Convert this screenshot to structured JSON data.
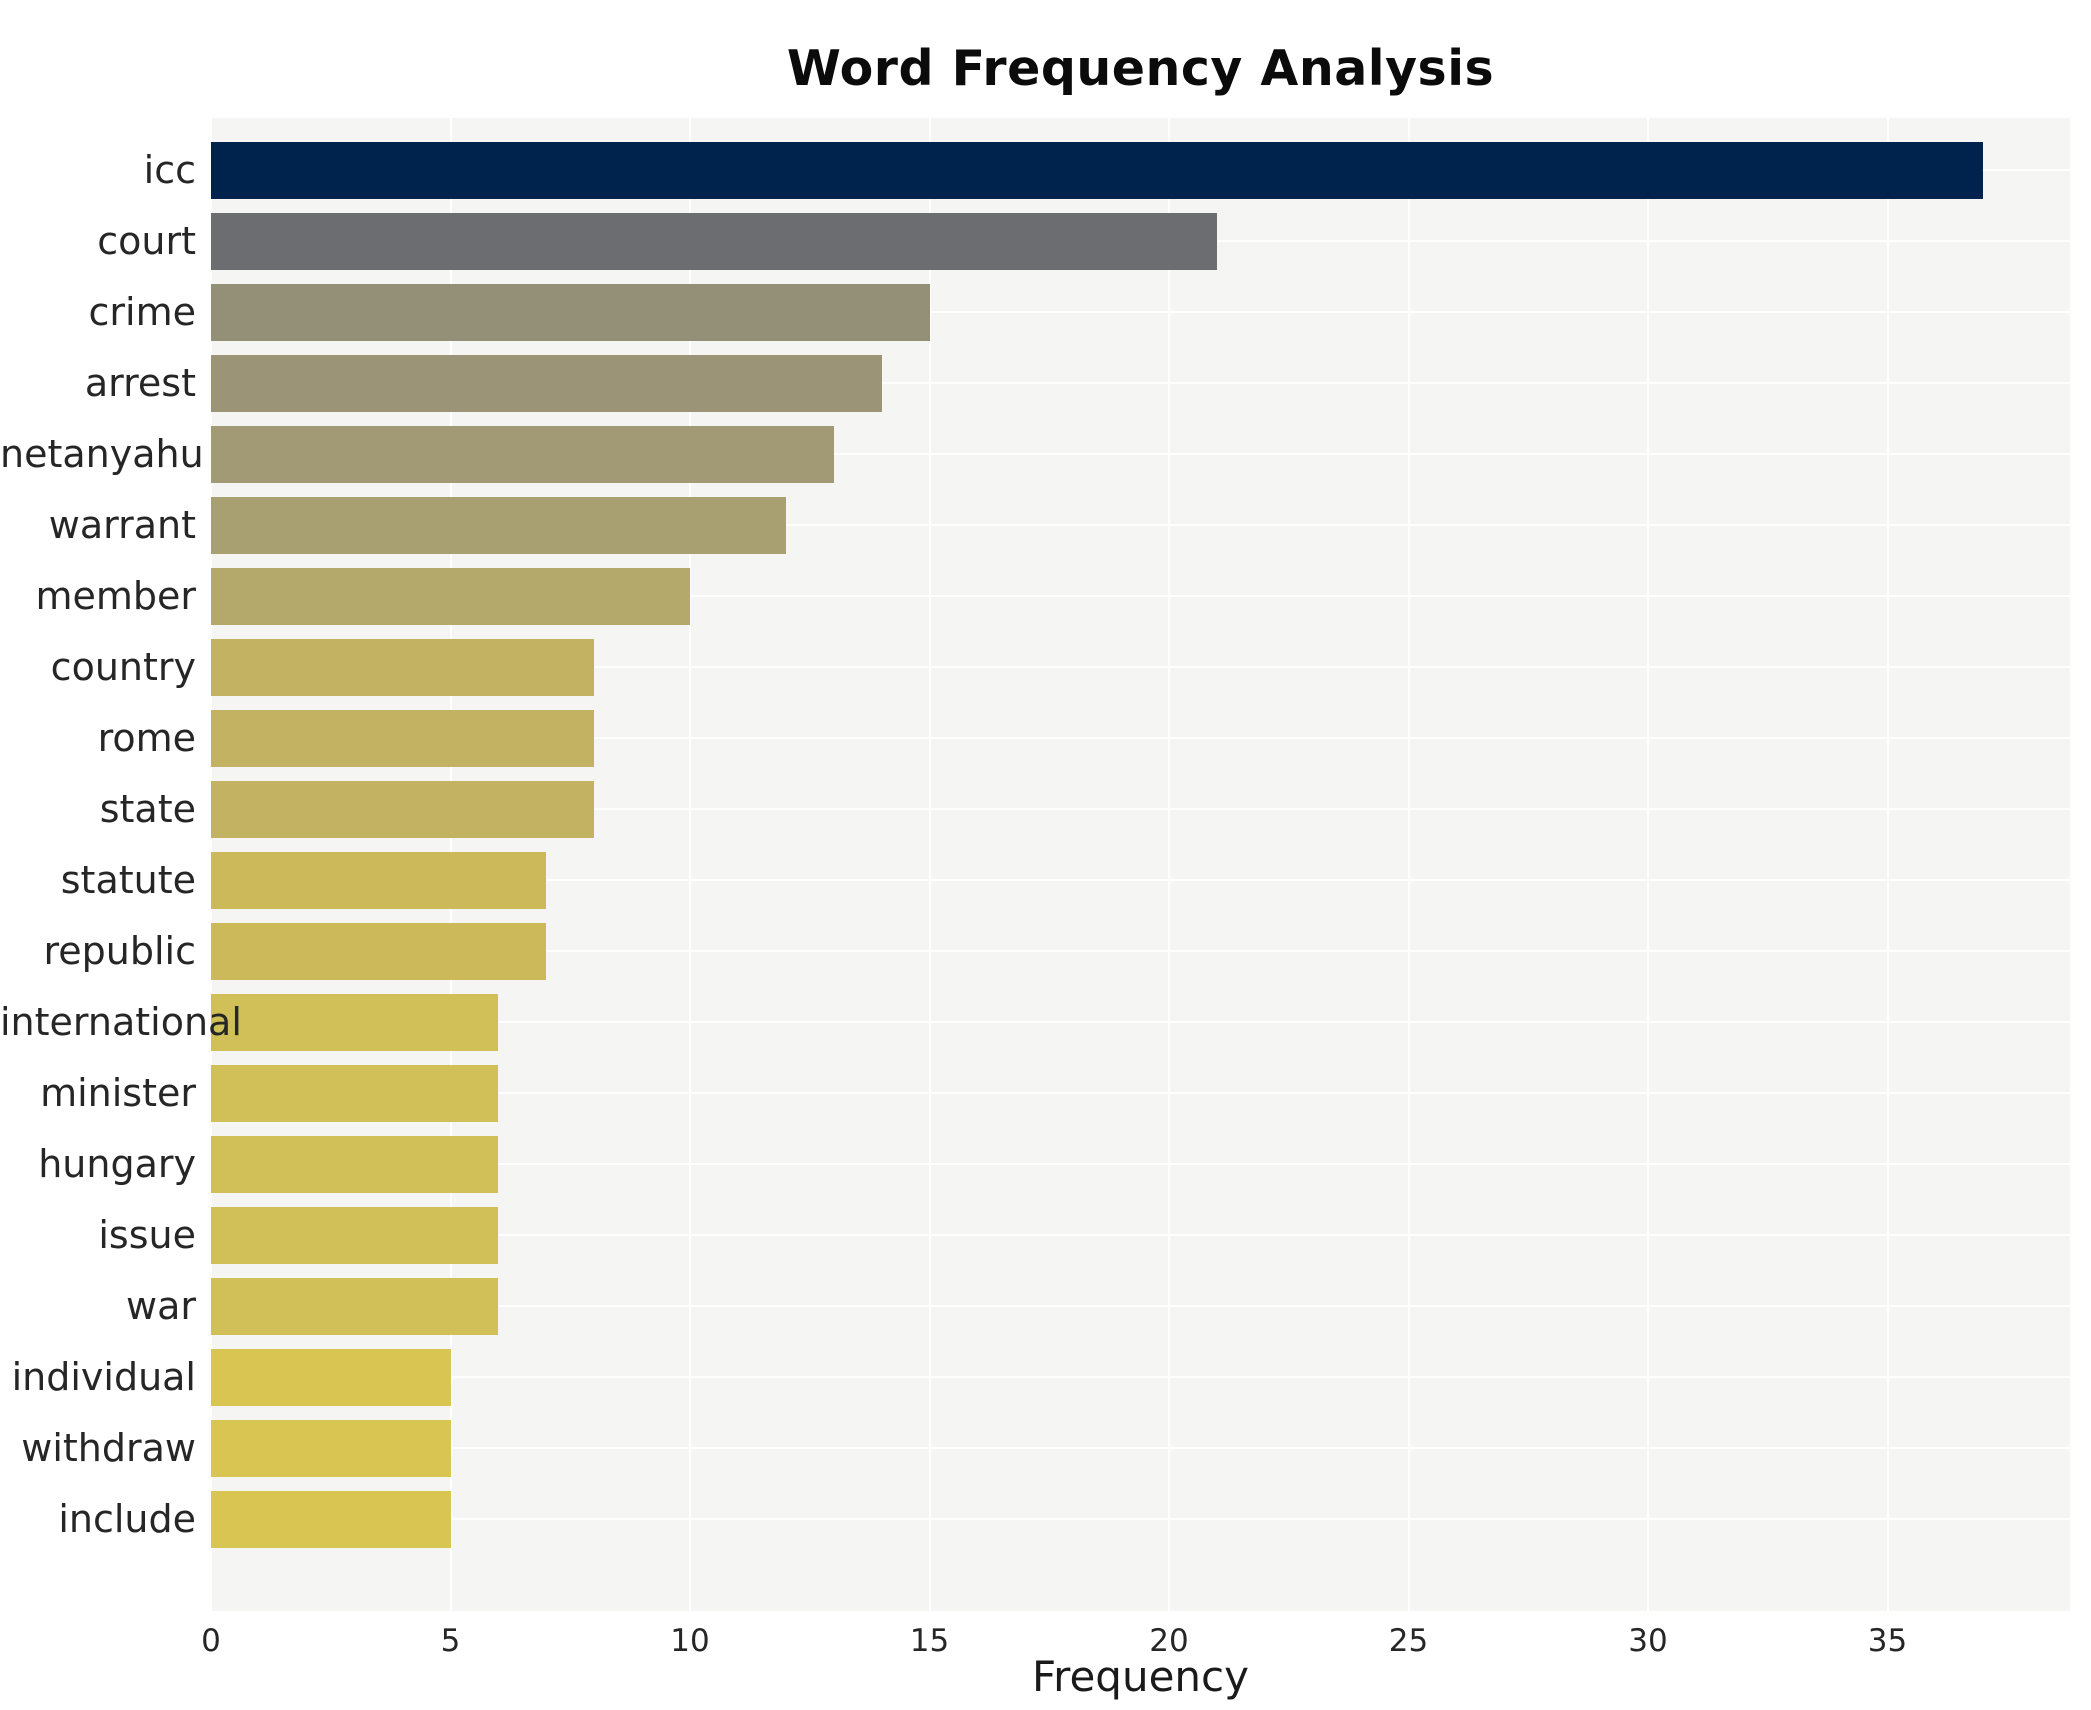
{
  "title": "Word Frequency Analysis",
  "x_axis_label": "Frequency",
  "chart_data": {
    "type": "bar",
    "orientation": "horizontal",
    "title": "Word Frequency Analysis",
    "xlabel": "Frequency",
    "ylabel": "",
    "categories": [
      "icc",
      "court",
      "crime",
      "arrest",
      "netanyahu",
      "warrant",
      "member",
      "country",
      "rome",
      "state",
      "statute",
      "republic",
      "international",
      "minister",
      "hungary",
      "issue",
      "war",
      "individual",
      "withdraw",
      "include"
    ],
    "values": [
      37,
      21,
      15,
      14,
      13,
      12,
      10,
      8,
      8,
      8,
      7,
      7,
      6,
      6,
      6,
      6,
      6,
      5,
      5,
      5
    ],
    "bar_colors": [
      "#00234e",
      "#6c6d71",
      "#949078",
      "#9b9476",
      "#a29a74",
      "#a9a071",
      "#b4a86b",
      "#c3b261",
      "#c3b261",
      "#c3b261",
      "#cbb95a",
      "#cbb95a",
      "#d1c058",
      "#d1c058",
      "#d1c058",
      "#d1c058",
      "#d1c058",
      "#d9c552",
      "#d9c552",
      "#d9c552"
    ],
    "x_ticks": [
      0,
      5,
      10,
      15,
      20,
      25,
      30,
      35
    ],
    "xlim": [
      0,
      38.8
    ],
    "grid": true,
    "legend": false,
    "plot_background": "#f5f5f3",
    "grid_color": "#ffffff",
    "text_color": "#262626",
    "title_color": "#0b0b0b"
  }
}
